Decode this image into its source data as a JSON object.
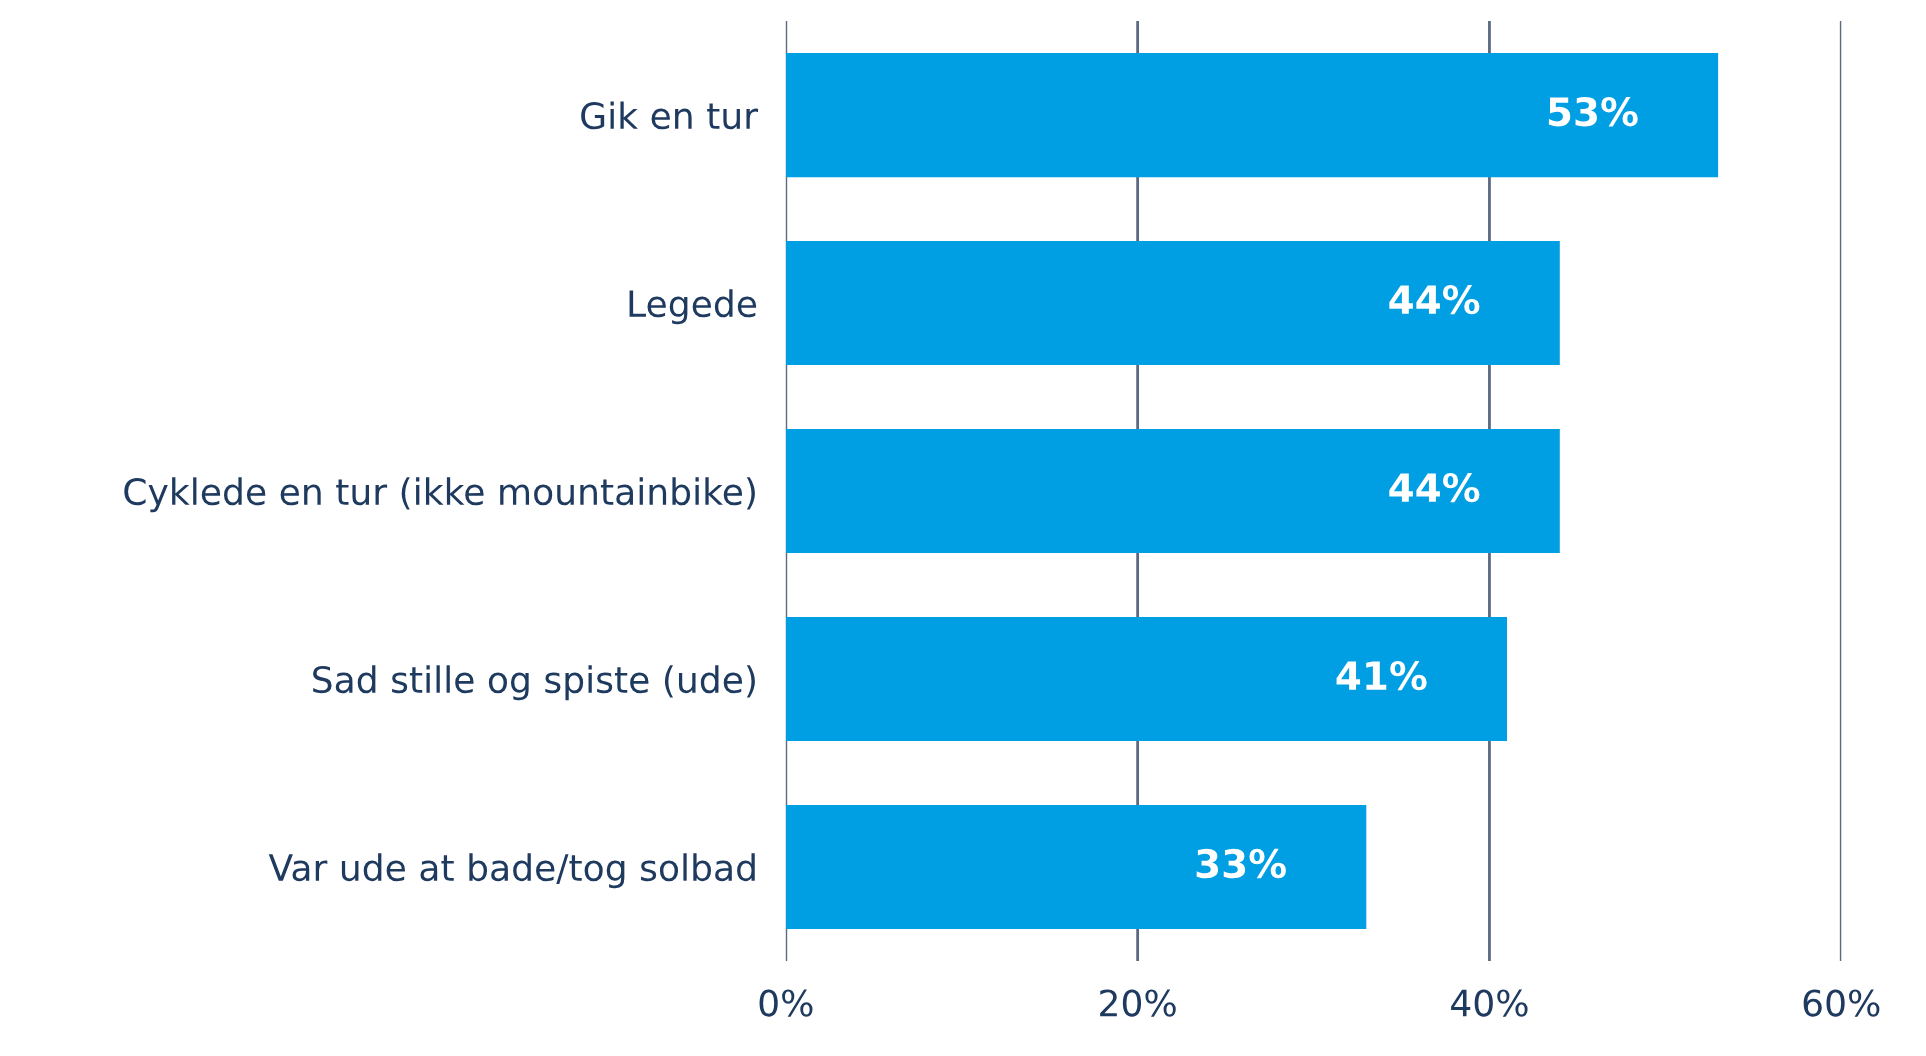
{
  "chart_data": {
    "type": "bar",
    "orientation": "horizontal",
    "categories": [
      "Gik en tur",
      "Legede",
      "Cyklede en tur (ikke mountainbike)",
      "Sad stille og spiste (ude)",
      "Var ude at bade/tog solbad"
    ],
    "values": [
      53,
      44,
      44,
      41,
      33
    ],
    "value_labels": [
      "53%",
      "44%",
      "44%",
      "41%",
      "33%"
    ],
    "color": "#009fe3",
    "xlim": [
      0,
      60
    ],
    "xticks": [
      {
        "value": 0,
        "label": "0%"
      },
      {
        "value": 20,
        "label": "20%"
      },
      {
        "value": 40,
        "label": "40%"
      },
      {
        "value": 60,
        "label": "60%"
      }
    ],
    "grid": "x",
    "legend": false
  }
}
